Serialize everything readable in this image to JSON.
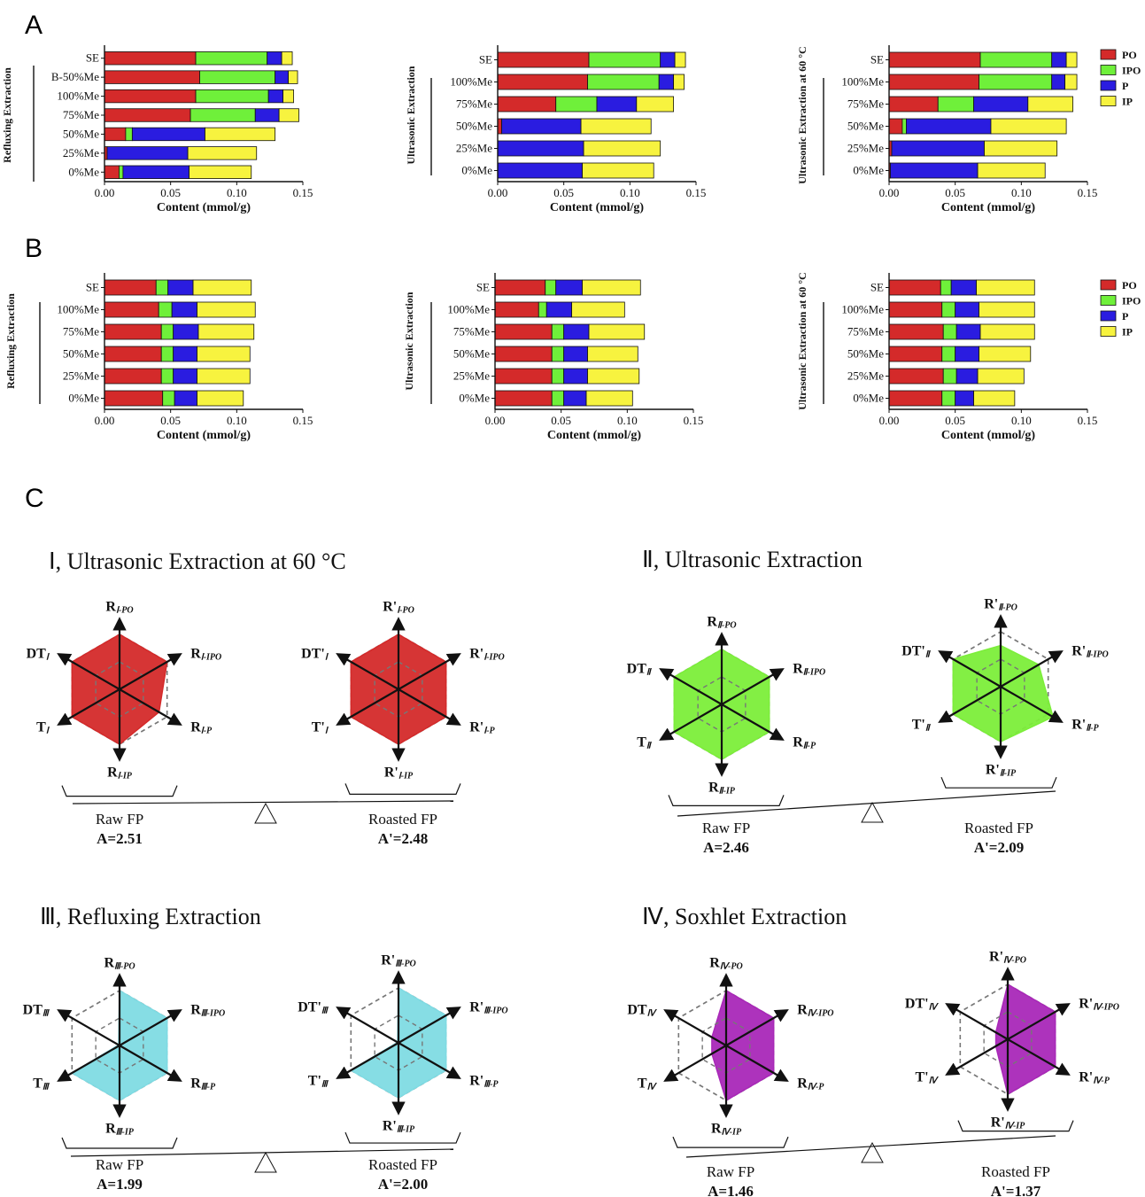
{
  "panel_labels": [
    "A",
    "B",
    "C"
  ],
  "legend": {
    "items": [
      {
        "label": "PO",
        "color": "#d42a2a"
      },
      {
        "label": "IPO",
        "color": "#6ff03a"
      },
      {
        "label": "P",
        "color": "#2a1ce0"
      },
      {
        "label": "IP",
        "color": "#f7f33f"
      }
    ]
  },
  "colors": {
    "PO": "#d42a2a",
    "IPO": "#6ff03a",
    "P": "#2a1ce0",
    "IP": "#f7f33f",
    "radar_I": "#d42a2a",
    "radar_II": "#7cee3a",
    "radar_III": "#7fdbe3",
    "radar_IV": "#a928b8"
  },
  "chart_data": [
    {
      "panel": "A",
      "type": "bar",
      "orientation": "horizontal",
      "stacked": true,
      "group_label": "Refluxing Extraction",
      "xlabel": "Content (mmol/g)",
      "xlim": [
        0,
        0.15
      ],
      "xticks": [
        "0.00",
        "0.05",
        "0.10",
        "0.15"
      ],
      "categories": [
        "SE",
        "B-50%Me",
        "100%Me",
        "75%Me",
        "50%Me",
        "25%Me",
        "0%Me"
      ],
      "series": [
        {
          "name": "PO",
          "values": [
            0.069,
            0.072,
            0.069,
            0.065,
            0.016,
            0.002,
            0.011
          ]
        },
        {
          "name": "IPO",
          "values": [
            0.054,
            0.057,
            0.055,
            0.049,
            0.005,
            0.0,
            0.003
          ]
        },
        {
          "name": "P",
          "values": [
            0.011,
            0.01,
            0.011,
            0.018,
            0.055,
            0.061,
            0.05
          ]
        },
        {
          "name": "IP",
          "values": [
            0.008,
            0.007,
            0.008,
            0.015,
            0.053,
            0.052,
            0.047
          ]
        }
      ]
    },
    {
      "panel": "A",
      "type": "bar",
      "orientation": "horizontal",
      "stacked": true,
      "group_label": "Ultrasonic Extraction",
      "xlabel": "Content (mmol/g)",
      "xlim": [
        0,
        0.15
      ],
      "xticks": [
        "0.00",
        "0.05",
        "0.10",
        "0.15"
      ],
      "categories": [
        "SE",
        "100%Me",
        "75%Me",
        "50%Me",
        "25%Me",
        "0%Me"
      ],
      "series": [
        {
          "name": "PO",
          "values": [
            0.069,
            0.068,
            0.044,
            0.003,
            0.0,
            0.0
          ]
        },
        {
          "name": "IPO",
          "values": [
            0.054,
            0.054,
            0.031,
            0.0,
            0.0,
            0.0
          ]
        },
        {
          "name": "P",
          "values": [
            0.011,
            0.011,
            0.03,
            0.06,
            0.065,
            0.064
          ]
        },
        {
          "name": "IP",
          "values": [
            0.008,
            0.008,
            0.028,
            0.053,
            0.058,
            0.054
          ]
        }
      ]
    },
    {
      "panel": "A",
      "type": "bar",
      "orientation": "horizontal",
      "stacked": true,
      "group_label": "Ultrasonic Extraction at 60 °C",
      "xlabel": "Content (mmol/g)",
      "xlim": [
        0,
        0.15
      ],
      "xticks": [
        "0.00",
        "0.05",
        "0.10",
        "0.15"
      ],
      "categories": [
        "SE",
        "100%Me",
        "75%Me",
        "50%Me",
        "25%Me",
        "0%Me"
      ],
      "series": [
        {
          "name": "PO",
          "values": [
            0.069,
            0.068,
            0.037,
            0.01,
            0.002,
            0.001
          ]
        },
        {
          "name": "IPO",
          "values": [
            0.054,
            0.055,
            0.027,
            0.003,
            0.0,
            0.0
          ]
        },
        {
          "name": "P",
          "values": [
            0.011,
            0.01,
            0.041,
            0.064,
            0.07,
            0.066
          ]
        },
        {
          "name": "IP",
          "values": [
            0.008,
            0.009,
            0.034,
            0.057,
            0.055,
            0.051
          ]
        }
      ]
    },
    {
      "panel": "B",
      "type": "bar",
      "orientation": "horizontal",
      "stacked": true,
      "group_label": "Refluxing Extraction",
      "xlabel": "Content (mmol/g)",
      "xlim": [
        0,
        0.15
      ],
      "xticks": [
        "0.00",
        "0.05",
        "0.10",
        "0.15"
      ],
      "categories": [
        "SE",
        "100%Me",
        "75%Me",
        "50%Me",
        "25%Me",
        "0%Me"
      ],
      "series": [
        {
          "name": "PO",
          "values": [
            0.039,
            0.041,
            0.043,
            0.043,
            0.043,
            0.044
          ]
        },
        {
          "name": "IPO",
          "values": [
            0.009,
            0.01,
            0.009,
            0.009,
            0.009,
            0.009
          ]
        },
        {
          "name": "P",
          "values": [
            0.019,
            0.019,
            0.019,
            0.018,
            0.018,
            0.017
          ]
        },
        {
          "name": "IP",
          "values": [
            0.044,
            0.044,
            0.042,
            0.04,
            0.04,
            0.035
          ]
        }
      ]
    },
    {
      "panel": "B",
      "type": "bar",
      "orientation": "horizontal",
      "stacked": true,
      "group_label": "Ultrasonic Extraction",
      "xlabel": "Content (mmol/g)",
      "xlim": [
        0,
        0.15
      ],
      "xticks": [
        "0.00",
        "0.05",
        "0.10",
        "0.15"
      ],
      "categories": [
        "SE",
        "100%Me",
        "75%Me",
        "50%Me",
        "25%Me",
        "0%Me"
      ],
      "series": [
        {
          "name": "PO",
          "values": [
            0.038,
            0.033,
            0.043,
            0.043,
            0.043,
            0.043
          ]
        },
        {
          "name": "IPO",
          "values": [
            0.008,
            0.006,
            0.009,
            0.009,
            0.009,
            0.009
          ]
        },
        {
          "name": "P",
          "values": [
            0.02,
            0.019,
            0.019,
            0.018,
            0.018,
            0.017
          ]
        },
        {
          "name": "IP",
          "values": [
            0.044,
            0.04,
            0.042,
            0.038,
            0.039,
            0.035
          ]
        }
      ]
    },
    {
      "panel": "B",
      "type": "bar",
      "orientation": "horizontal",
      "stacked": true,
      "group_label": "Ultrasonic Extraction at 60 °C",
      "xlabel": "Content (mmol/g)",
      "xlim": [
        0,
        0.15
      ],
      "xticks": [
        "0.00",
        "0.05",
        "0.10",
        "0.15"
      ],
      "categories": [
        "SE",
        "100%Me",
        "75%Me",
        "50%Me",
        "25%Me",
        "0%Me"
      ],
      "series": [
        {
          "name": "PO",
          "values": [
            0.039,
            0.04,
            0.041,
            0.04,
            0.041,
            0.04
          ]
        },
        {
          "name": "IPO",
          "values": [
            0.008,
            0.01,
            0.01,
            0.01,
            0.01,
            0.01
          ]
        },
        {
          "name": "P",
          "values": [
            0.019,
            0.018,
            0.018,
            0.018,
            0.016,
            0.014
          ]
        },
        {
          "name": "IP",
          "values": [
            0.044,
            0.042,
            0.041,
            0.039,
            0.035,
            0.031
          ]
        }
      ]
    },
    {
      "panel": "C",
      "type": "radar",
      "title": "Ⅰ, Ultrasonic Extraction at 60 °C",
      "plots": [
        {
          "labels": [
            [
              "R",
              "Ⅰ-PO"
            ],
            [
              "R",
              "Ⅰ-IPO"
            ],
            [
              "R",
              "Ⅰ-P"
            ],
            [
              "R",
              "Ⅰ-IP"
            ],
            [
              "T",
              "Ⅰ"
            ],
            [
              "DT",
              "Ⅰ"
            ]
          ],
          "values": [
            1.0,
            1.0,
            0.83,
            1.0,
            1.0,
            1.0
          ],
          "caption": "Raw FP",
          "score": "A=2.51"
        },
        {
          "labels": [
            [
              "R'",
              "Ⅰ-PO"
            ],
            [
              "R'",
              "Ⅰ-IPO"
            ],
            [
              "R'",
              "Ⅰ-P"
            ],
            [
              "R'",
              "Ⅰ-IP"
            ],
            [
              "T'",
              "Ⅰ"
            ],
            [
              "DT'",
              "Ⅰ"
            ]
          ],
          "values": [
            1.0,
            1.0,
            1.0,
            1.0,
            1.0,
            1.0
          ],
          "caption": "Roasted FP",
          "score": "A'=2.48"
        }
      ]
    },
    {
      "panel": "C",
      "type": "radar",
      "title": "Ⅱ, Ultrasonic Extraction",
      "plots": [
        {
          "labels": [
            [
              "R",
              "Ⅱ-PO"
            ],
            [
              "R",
              "Ⅱ-IPO"
            ],
            [
              "R",
              "Ⅱ-P"
            ],
            [
              "R",
              "Ⅱ-IP"
            ],
            [
              "T",
              "Ⅱ"
            ],
            [
              "DT",
              "Ⅱ"
            ]
          ],
          "values": [
            1.0,
            1.0,
            1.0,
            1.0,
            1.0,
            1.0
          ],
          "caption": "Raw FP",
          "score": "A=2.46"
        },
        {
          "labels": [
            [
              "R'",
              "Ⅱ-PO"
            ],
            [
              "R'",
              "Ⅱ-IPO"
            ],
            [
              "R'",
              "Ⅱ-P"
            ],
            [
              "R'",
              "Ⅱ-IP"
            ],
            [
              "T'",
              "Ⅱ"
            ],
            [
              "DT'",
              "Ⅱ"
            ]
          ],
          "values": [
            0.75,
            0.8,
            1.1,
            1.0,
            1.0,
            1.0
          ],
          "caption": "Roasted FP",
          "score": "A'=2.09"
        }
      ]
    },
    {
      "panel": "C",
      "type": "radar",
      "title": "Ⅲ, Refluxing Extraction",
      "plots": [
        {
          "labels": [
            [
              "R",
              "Ⅲ-PO"
            ],
            [
              "R",
              "Ⅲ-IPO"
            ],
            [
              "R",
              "Ⅲ-P"
            ],
            [
              "R",
              "Ⅲ-IP"
            ],
            [
              "T",
              "Ⅲ"
            ],
            [
              "DT",
              "Ⅲ"
            ]
          ],
          "values": [
            1.0,
            1.0,
            1.0,
            1.0,
            1.0,
            0.0
          ],
          "caption": "Raw FP",
          "score": "A=1.99"
        },
        {
          "labels": [
            [
              "R'",
              "Ⅲ-PO"
            ],
            [
              "R'",
              "Ⅲ-IPO"
            ],
            [
              "R'",
              "Ⅲ-P"
            ],
            [
              "R'",
              "Ⅲ-IP"
            ],
            [
              "T'",
              "Ⅲ"
            ],
            [
              "DT'",
              "Ⅲ"
            ]
          ],
          "values": [
            1.0,
            1.0,
            1.0,
            1.0,
            1.0,
            0.0
          ],
          "caption": "Roasted FP",
          "score": "A'=2.00"
        }
      ]
    },
    {
      "panel": "C",
      "type": "radar",
      "title": "Ⅳ, Soxhlet Extraction",
      "plots": [
        {
          "labels": [
            [
              "R",
              "Ⅳ-PO"
            ],
            [
              "R",
              "Ⅳ-IPO"
            ],
            [
              "R",
              "Ⅳ-P"
            ],
            [
              "R",
              "Ⅳ-IP"
            ],
            [
              "T",
              "Ⅳ"
            ],
            [
              "DT",
              "Ⅳ"
            ]
          ],
          "values": [
            1.0,
            1.0,
            1.0,
            1.0,
            0.3,
            0.3
          ],
          "caption": "Raw FP",
          "score": "A=1.46"
        },
        {
          "labels": [
            [
              "R'",
              "Ⅳ-PO"
            ],
            [
              "R'",
              "Ⅳ-IPO"
            ],
            [
              "R'",
              "Ⅳ-P"
            ],
            [
              "R'",
              "Ⅳ-IP"
            ],
            [
              "T'",
              "Ⅳ"
            ],
            [
              "DT'",
              "Ⅳ"
            ]
          ],
          "values": [
            1.0,
            1.0,
            1.0,
            1.0,
            0.25,
            0.25
          ],
          "caption": "Roasted FP",
          "score": "A'=1.37"
        }
      ]
    }
  ]
}
